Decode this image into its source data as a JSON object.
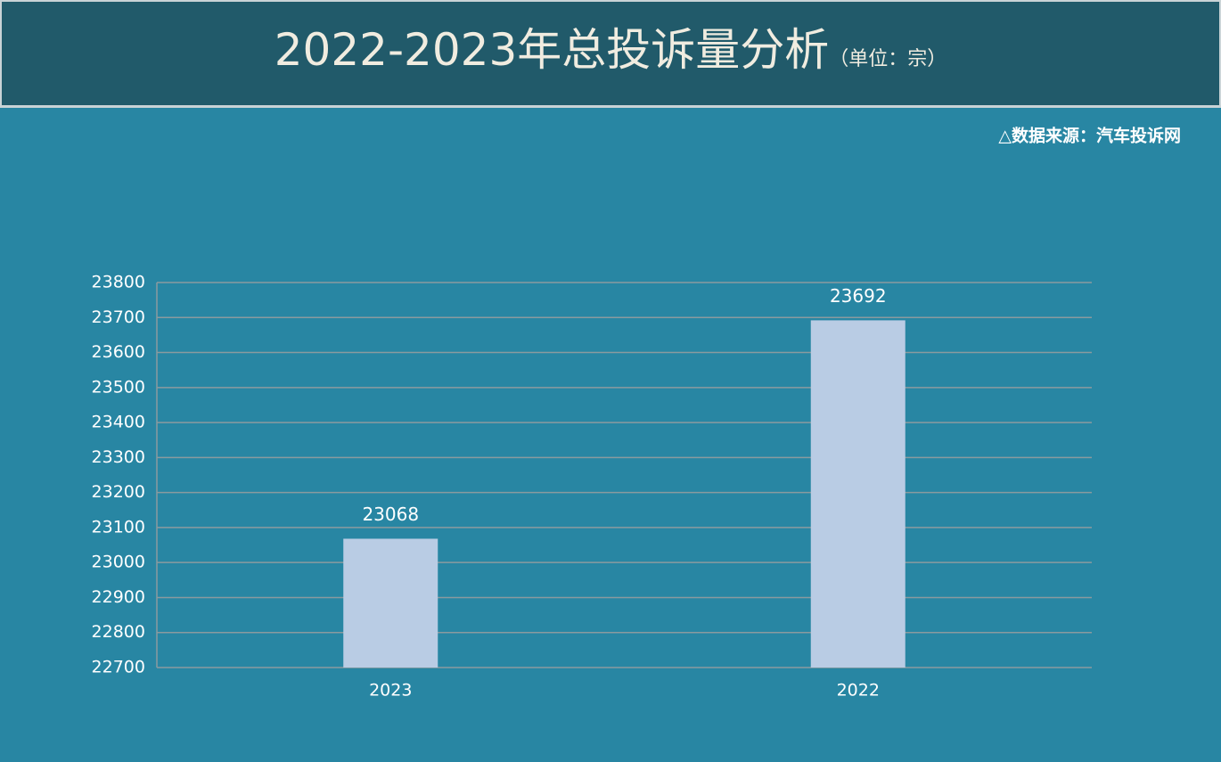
{
  "chart_data": {
    "type": "bar",
    "title": "2022-2023年总投诉量分析",
    "subtitle": "（单位：宗）",
    "source": "△数据来源：汽车投诉网",
    "categories": [
      "2023",
      "2022"
    ],
    "values": [
      23068,
      23692
    ],
    "color": "#b9cce4",
    "ylim": [
      22700,
      23800
    ],
    "yticks": [
      22700,
      22800,
      22900,
      23000,
      23100,
      23200,
      23300,
      23400,
      23500,
      23600,
      23700,
      23800
    ],
    "grid": true
  }
}
